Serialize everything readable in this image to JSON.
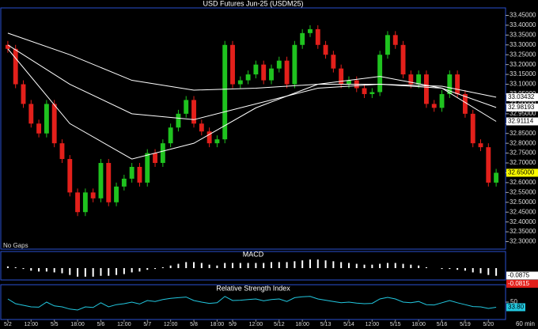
{
  "chart_data": {
    "type": "candlestick",
    "title": "USD Futures Jun-25 (USDM25)",
    "note": "No Gaps",
    "interval": "60 min",
    "categories": [
      "5/2",
      null,
      null,
      "12:00",
      null,
      null,
      "5/5",
      null,
      null,
      "18:00",
      null,
      null,
      "5/6",
      null,
      null,
      "12:00",
      null,
      null,
      "5/7",
      null,
      null,
      "12:00",
      null,
      null,
      "5/8",
      null,
      null,
      "18:00",
      null,
      "5/9",
      null,
      null,
      "12:00",
      null,
      null,
      "5/12",
      null,
      null,
      "18:00",
      null,
      null,
      "5/13",
      null,
      null,
      "5/14",
      null,
      null,
      "12:00",
      null,
      null,
      "5/15",
      null,
      null,
      "18:00",
      null,
      null,
      "5/16",
      null,
      null,
      "5/19",
      null,
      null,
      "5/20",
      null
    ],
    "open": [
      33.3,
      33.28,
      33.1,
      33.0,
      32.9,
      32.85,
      33.0,
      32.8,
      32.72,
      32.55,
      32.45,
      32.55,
      32.52,
      32.7,
      32.5,
      32.58,
      32.62,
      32.68,
      32.6,
      32.75,
      32.7,
      32.8,
      32.88,
      32.95,
      33.02,
      32.9,
      32.86,
      32.8,
      32.82,
      33.3,
      33.1,
      33.12,
      33.15,
      33.2,
      33.12,
      33.18,
      33.22,
      33.1,
      33.3,
      33.36,
      33.38,
      33.3,
      33.25,
      33.18,
      33.1,
      33.12,
      33.08,
      33.05,
      33.06,
      33.25,
      33.35,
      33.3,
      33.15,
      33.1,
      33.15,
      33.0,
      32.98,
      33.05,
      33.15,
      33.05,
      32.95,
      32.8,
      32.78,
      32.6
    ],
    "high": [
      33.32,
      33.3,
      33.12,
      33.02,
      32.92,
      33.02,
      33.02,
      32.82,
      32.74,
      32.57,
      32.57,
      32.57,
      32.72,
      32.72,
      32.6,
      32.64,
      32.7,
      32.7,
      32.77,
      32.77,
      32.82,
      32.9,
      32.97,
      33.04,
      33.04,
      32.92,
      32.88,
      32.84,
      33.32,
      33.32,
      33.14,
      33.17,
      33.22,
      33.22,
      33.2,
      33.24,
      33.24,
      33.32,
      33.38,
      33.4,
      33.4,
      33.32,
      33.27,
      33.2,
      33.14,
      33.14,
      33.1,
      33.08,
      33.27,
      33.37,
      33.37,
      33.32,
      33.17,
      33.17,
      33.17,
      33.02,
      33.07,
      33.17,
      33.17,
      33.07,
      32.97,
      32.82,
      32.8,
      32.67
    ],
    "low": [
      33.26,
      33.08,
      32.98,
      32.88,
      32.83,
      32.83,
      32.78,
      32.7,
      32.53,
      32.43,
      32.43,
      32.5,
      32.5,
      32.48,
      32.48,
      32.56,
      32.6,
      32.58,
      32.58,
      32.68,
      32.68,
      32.78,
      32.86,
      32.93,
      32.88,
      32.84,
      32.78,
      32.78,
      32.8,
      33.08,
      33.08,
      33.1,
      33.13,
      33.1,
      33.1,
      33.16,
      33.08,
      33.08,
      33.28,
      33.34,
      33.28,
      33.23,
      33.16,
      33.08,
      33.08,
      33.06,
      33.03,
      33.03,
      33.04,
      33.23,
      33.28,
      33.13,
      33.08,
      33.08,
      32.98,
      32.96,
      32.96,
      33.03,
      33.03,
      32.93,
      32.78,
      32.76,
      32.58,
      32.58
    ],
    "close": [
      33.28,
      33.1,
      33.0,
      32.9,
      32.85,
      33.0,
      32.8,
      32.72,
      32.55,
      32.45,
      32.55,
      32.52,
      32.7,
      32.5,
      32.58,
      32.62,
      32.68,
      32.6,
      32.75,
      32.7,
      32.8,
      32.88,
      32.95,
      33.02,
      32.9,
      32.86,
      32.8,
      32.82,
      33.3,
      33.1,
      33.12,
      33.15,
      33.2,
      33.12,
      33.18,
      33.22,
      33.1,
      33.3,
      33.36,
      33.38,
      33.3,
      33.25,
      33.18,
      33.1,
      33.12,
      33.08,
      33.05,
      33.06,
      33.25,
      33.35,
      33.3,
      33.15,
      33.1,
      33.15,
      33.0,
      32.98,
      33.05,
      33.15,
      33.05,
      32.95,
      32.8,
      32.78,
      32.6,
      32.65
    ],
    "last_close_label": "32.65000",
    "up_color": "#1fc31f",
    "down_color": "#e3201b",
    "ylim": [
      32.27,
      33.48
    ],
    "yticks": [
      {
        "value": 32.3,
        "label": "32.30000"
      },
      {
        "value": 32.35,
        "label": "32.35000"
      },
      {
        "value": 32.4,
        "label": "32.40000"
      },
      {
        "value": 32.45,
        "label": "32.45000"
      },
      {
        "value": 32.5,
        "label": "32.50000"
      },
      {
        "value": 32.55,
        "label": "32.55000"
      },
      {
        "value": 32.6,
        "label": "32.60000"
      },
      {
        "value": 32.65,
        "label": "32.65000"
      },
      {
        "value": 32.7,
        "label": "32.70000"
      },
      {
        "value": 32.75,
        "label": "32.75000"
      },
      {
        "value": 32.8,
        "label": "32.80000"
      },
      {
        "value": 32.85,
        "label": "32.85000"
      },
      {
        "value": 32.9,
        "label": "32.90000"
      },
      {
        "value": 32.95,
        "label": "32.95000"
      },
      {
        "value": 33.0,
        "label": "33.00000"
      },
      {
        "value": 33.05,
        "label": "33.05000"
      },
      {
        "value": 33.1,
        "label": "33.10000"
      },
      {
        "value": 33.15,
        "label": "33.15000"
      },
      {
        "value": 33.2,
        "label": "33.20000"
      },
      {
        "value": 33.25,
        "label": "33.25000"
      },
      {
        "value": 33.3,
        "label": "33.30000"
      },
      {
        "value": 33.35,
        "label": "33.35000"
      },
      {
        "value": 33.4,
        "label": "33.40000"
      },
      {
        "value": 33.45,
        "label": "33.45000"
      }
    ],
    "moving_averages": [
      {
        "color": "#ffffff",
        "x": [
          0,
          8,
          16,
          24,
          32,
          40,
          48,
          56,
          63
        ],
        "values": [
          33.36,
          33.25,
          33.12,
          33.07,
          33.08,
          33.1,
          33.1,
          33.09,
          33.03432
        ]
      },
      {
        "color": "#ffffff",
        "x": [
          0,
          8,
          16,
          24,
          32,
          40,
          48,
          56,
          63
        ],
        "values": [
          33.3,
          33.1,
          32.95,
          32.92,
          33.0,
          33.08,
          33.1,
          33.08,
          32.98193
        ]
      },
      {
        "color": "#ffffff",
        "x": [
          0,
          8,
          16,
          24,
          32,
          40,
          48,
          56,
          63
        ],
        "values": [
          33.28,
          32.9,
          32.72,
          32.8,
          32.98,
          33.1,
          33.14,
          33.08,
          32.91114
        ]
      }
    ],
    "macd": {
      "title": "MACD",
      "color": "#ffffff",
      "signal_color": "#e3201b",
      "ylim": [
        -0.12,
        0.12
      ],
      "histogram": [
        0.02,
        0.01,
        -0.01,
        -0.03,
        -0.04,
        -0.04,
        -0.05,
        -0.06,
        -0.08,
        -0.1,
        -0.1,
        -0.1,
        -0.09,
        -0.09,
        -0.08,
        -0.07,
        -0.05,
        -0.04,
        -0.02,
        -0.01,
        0.01,
        0.03,
        0.05,
        0.07,
        0.07,
        0.06,
        0.04,
        0.03,
        0.06,
        0.06,
        0.06,
        0.06,
        0.06,
        0.06,
        0.07,
        0.07,
        0.07,
        0.08,
        0.09,
        0.1,
        0.1,
        0.09,
        0.08,
        0.07,
        0.06,
        0.05,
        0.04,
        0.04,
        0.05,
        0.06,
        0.06,
        0.05,
        0.04,
        0.03,
        0.01,
        0.0,
        -0.01,
        -0.01,
        -0.02,
        -0.03,
        -0.05,
        -0.06,
        -0.08,
        -0.09
      ],
      "macd_last": -0.0875,
      "signal_last": -0.0815
    },
    "rsi": {
      "title": "Relative Strength Index",
      "color": "#22c8e0",
      "ylim": [
        0,
        100
      ],
      "yticks": [
        50
      ],
      "values": [
        60,
        45,
        40,
        35,
        34,
        50,
        38,
        35,
        28,
        25,
        35,
        33,
        48,
        35,
        42,
        45,
        50,
        44,
        55,
        52,
        58,
        62,
        64,
        66,
        55,
        50,
        46,
        48,
        68,
        55,
        56,
        58,
        60,
        54,
        58,
        60,
        52,
        64,
        67,
        68,
        60,
        56,
        52,
        48,
        50,
        47,
        45,
        46,
        60,
        65,
        60,
        50,
        48,
        52,
        42,
        41,
        48,
        55,
        48,
        42,
        36,
        35,
        30,
        33.8
      ],
      "last_label": "33.80"
    }
  }
}
